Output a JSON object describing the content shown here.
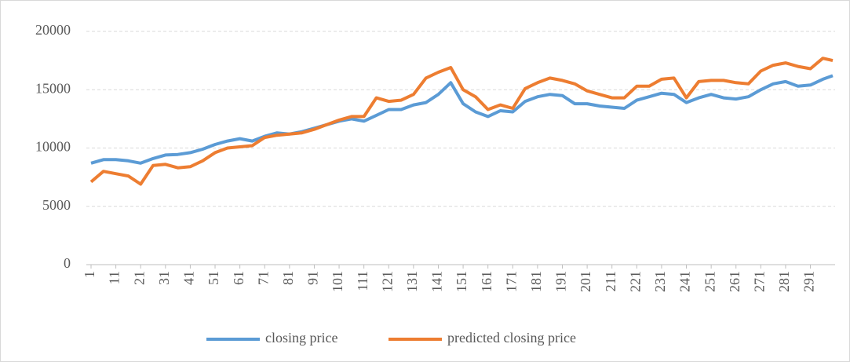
{
  "chart_data": {
    "type": "line",
    "x": [
      1,
      6,
      11,
      16,
      21,
      26,
      31,
      36,
      41,
      46,
      51,
      56,
      61,
      66,
      71,
      76,
      81,
      86,
      91,
      96,
      101,
      106,
      111,
      116,
      121,
      126,
      131,
      136,
      141,
      146,
      151,
      156,
      161,
      166,
      171,
      176,
      181,
      186,
      191,
      196,
      201,
      206,
      211,
      216,
      221,
      226,
      231,
      236,
      241,
      246,
      251,
      256,
      261,
      266,
      271,
      276,
      281,
      286,
      291,
      296,
      300
    ],
    "xlim": [
      1,
      300
    ],
    "xticks": [
      1,
      11,
      21,
      31,
      41,
      51,
      61,
      71,
      81,
      91,
      101,
      111,
      121,
      131,
      141,
      151,
      161,
      171,
      181,
      191,
      201,
      211,
      221,
      231,
      241,
      251,
      261,
      271,
      281,
      291
    ],
    "ylim": [
      0,
      20000
    ],
    "yticks": [
      0,
      5000,
      10000,
      15000,
      20000
    ],
    "grid": true,
    "legend": "bottom",
    "series": [
      {
        "name": "closing price",
        "color": "#5b9bd5",
        "values": [
          8700,
          9000,
          9000,
          8900,
          8700,
          9100,
          9400,
          9450,
          9600,
          9900,
          10300,
          10600,
          10800,
          10600,
          11000,
          11300,
          11200,
          11400,
          11700,
          12000,
          12300,
          12500,
          12300,
          12800,
          13300,
          13300,
          13700,
          13900,
          14600,
          15600,
          13800,
          13100,
          12700,
          13200,
          13100,
          14000,
          14400,
          14600,
          14500,
          13800,
          13800,
          13600,
          13500,
          13400,
          14100,
          14400,
          14700,
          14600,
          13900,
          14300,
          14600,
          14300,
          14200,
          14400,
          15000,
          15500,
          15700,
          15300,
          15400,
          15900,
          16200
        ]
      },
      {
        "name": "predicted closing price",
        "color": "#ed7d31",
        "values": [
          7100,
          8000,
          7800,
          7600,
          6900,
          8500,
          8600,
          8300,
          8400,
          8900,
          9600,
          10000,
          10100,
          10200,
          10900,
          11100,
          11200,
          11300,
          11600,
          12000,
          12400,
          12700,
          12700,
          14300,
          14000,
          14100,
          14600,
          16000,
          16500,
          16900,
          15000,
          14400,
          13300,
          13700,
          13400,
          15100,
          15600,
          16000,
          15800,
          15500,
          14900,
          14600,
          14300,
          14300,
          15300,
          15300,
          15900,
          16000,
          14300,
          15700,
          15800,
          15800,
          15600,
          15500,
          16600,
          17100,
          17300,
          17000,
          16800,
          17700,
          17500
        ]
      }
    ]
  }
}
